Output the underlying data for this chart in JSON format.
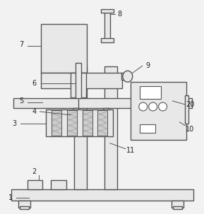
{
  "bg_color": "#f2f2f2",
  "line_color": "#555555",
  "lw": 1.0,
  "fg": "#e8e8e8",
  "white": "#ffffff"
}
